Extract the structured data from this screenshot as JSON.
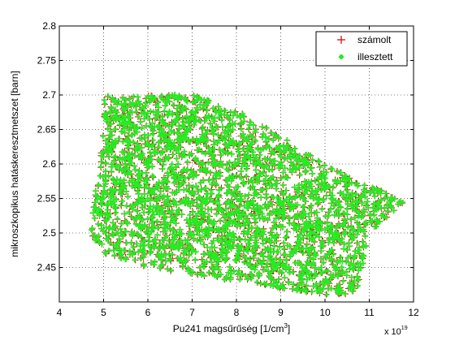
{
  "chart_data": {
    "type": "scatter",
    "title": "",
    "xlabel": "Pu241  magsűrűség [1/cm",
    "xlabel_superscript": "3",
    "xlabel_suffix": "]",
    "ylabel": "mikroszkopikus hatáskeresztmetszet [barn]",
    "x_multiplier_label": "x 10",
    "x_multiplier_exponent": "19",
    "xlim": [
      4,
      12
    ],
    "ylim": [
      2.4,
      2.8
    ],
    "xticks": [
      4,
      5,
      6,
      7,
      8,
      9,
      10,
      11,
      12
    ],
    "yticks": [
      2.45,
      2.5,
      2.55,
      2.6,
      2.65,
      2.7,
      2.75,
      2.8
    ],
    "xtick_labels": [
      "4",
      "5",
      "6",
      "7",
      "8",
      "9",
      "10",
      "11",
      "12"
    ],
    "ytick_labels": [
      "2.45",
      "2.5",
      "2.55",
      "2.6",
      "2.65",
      "2.7",
      "2.75",
      "2.8"
    ],
    "grid": true,
    "legend_position": "top-right",
    "series": [
      {
        "name": "számolt",
        "marker": "+",
        "color": "#cc0000"
      },
      {
        "name": "illesztett",
        "marker": "*",
        "color": "#22ee22"
      }
    ],
    "point_cloud": {
      "description_points": [
        [
          5.0,
          2.7
        ],
        [
          6.0,
          2.7
        ],
        [
          7.0,
          2.7
        ],
        [
          8.0,
          2.68
        ],
        [
          9.0,
          2.64
        ],
        [
          10.0,
          2.6
        ],
        [
          11.0,
          2.57
        ],
        [
          11.8,
          2.545
        ],
        [
          11.0,
          2.5
        ],
        [
          10.7,
          2.41
        ],
        [
          10.0,
          2.41
        ],
        [
          9.0,
          2.42
        ],
        [
          8.0,
          2.43
        ],
        [
          7.0,
          2.44
        ],
        [
          6.0,
          2.45
        ],
        [
          5.0,
          2.47
        ],
        [
          4.7,
          2.5
        ],
        [
          4.8,
          2.55
        ],
        [
          5.0,
          2.65
        ]
      ]
    }
  },
  "colors": {
    "series1": "#cc0000",
    "series2": "#22ee22",
    "axis": "#000000",
    "grid": "#000000"
  }
}
